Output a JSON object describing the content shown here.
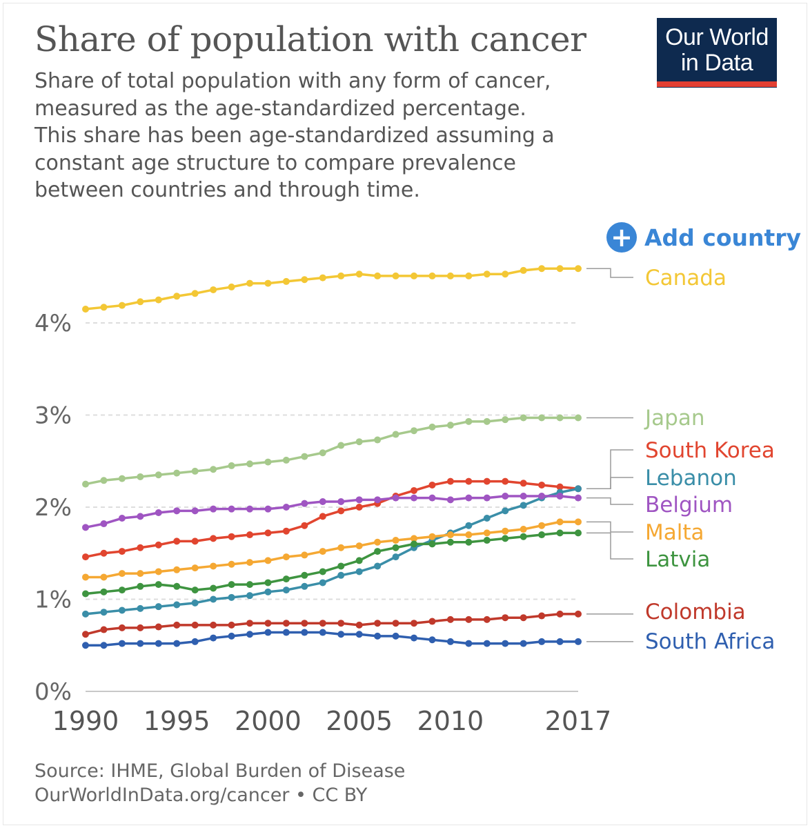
{
  "header": {
    "title": "Share of population with cancer",
    "subtitle_lines": [
      "Share of total population with any form of cancer,",
      "measured as the age-standardized percentage.",
      "This share has been age-standardized assuming a",
      "constant age structure to compare prevalence",
      "between countries and through time."
    ],
    "logo_lines": [
      "Our World",
      "in Data"
    ],
    "logo_color": "#0e2a4f",
    "logo_accent": "#e23f32"
  },
  "controls": {
    "add_country_label": "Add country",
    "add_country_icon": "plus-circle-icon",
    "accent": "#3a86d6"
  },
  "footer": {
    "source_line": "Source: IHME, Global Burden of Disease",
    "license_line": "OurWorldInData.org/cancer • CC BY"
  },
  "chart_data": {
    "type": "line",
    "title": "Share of population with cancer",
    "x": [
      1990,
      1991,
      1992,
      1993,
      1994,
      1995,
      1996,
      1997,
      1998,
      1999,
      2000,
      2001,
      2002,
      2003,
      2004,
      2005,
      2006,
      2007,
      2008,
      2009,
      2010,
      2011,
      2012,
      2013,
      2014,
      2015,
      2016,
      2017
    ],
    "xticks": [
      {
        "value": 1990,
        "label": "1990"
      },
      {
        "value": 1995,
        "label": "1995"
      },
      {
        "value": 2000,
        "label": "2000"
      },
      {
        "value": 2005,
        "label": "2005"
      },
      {
        "value": 2010,
        "label": "2010"
      },
      {
        "value": 2017,
        "label": "2017"
      }
    ],
    "yticks": [
      {
        "value": 0,
        "label": "0%"
      },
      {
        "value": 1,
        "label": "1%"
      },
      {
        "value": 2,
        "label": "2%"
      },
      {
        "value": 3,
        "label": "3%"
      },
      {
        "value": 4,
        "label": "4%"
      }
    ],
    "xlim": [
      1990,
      2017
    ],
    "ylim": [
      0,
      4.6
    ],
    "grid": "horizontal dashed",
    "legend": "right, labels at line ends",
    "series": [
      {
        "name": "Canada",
        "color": "#f3c735",
        "values": [
          4.15,
          4.17,
          4.19,
          4.23,
          4.25,
          4.29,
          4.32,
          4.36,
          4.39,
          4.43,
          4.43,
          4.45,
          4.47,
          4.49,
          4.51,
          4.53,
          4.51,
          4.51,
          4.51,
          4.51,
          4.51,
          4.51,
          4.53,
          4.53,
          4.57,
          4.59,
          4.59,
          4.59
        ]
      },
      {
        "name": "Japan",
        "color": "#a6c98c",
        "values": [
          2.25,
          2.29,
          2.31,
          2.33,
          2.35,
          2.37,
          2.39,
          2.41,
          2.45,
          2.47,
          2.49,
          2.51,
          2.55,
          2.59,
          2.67,
          2.71,
          2.73,
          2.79,
          2.83,
          2.87,
          2.89,
          2.93,
          2.93,
          2.95,
          2.97,
          2.97,
          2.97,
          2.97
        ]
      },
      {
        "name": "South Korea",
        "color": "#e1452f",
        "values": [
          1.46,
          1.5,
          1.52,
          1.56,
          1.59,
          1.63,
          1.63,
          1.66,
          1.68,
          1.7,
          1.72,
          1.74,
          1.8,
          1.9,
          1.96,
          2.0,
          2.04,
          2.12,
          2.18,
          2.24,
          2.28,
          2.28,
          2.28,
          2.28,
          2.26,
          2.24,
          2.22,
          2.2
        ]
      },
      {
        "name": "Lebanon",
        "color": "#3a8ea8",
        "values": [
          0.84,
          0.86,
          0.88,
          0.9,
          0.92,
          0.94,
          0.96,
          1.0,
          1.02,
          1.04,
          1.08,
          1.1,
          1.14,
          1.18,
          1.26,
          1.3,
          1.36,
          1.46,
          1.56,
          1.64,
          1.72,
          1.8,
          1.88,
          1.96,
          2.02,
          2.1,
          2.16,
          2.2
        ]
      },
      {
        "name": "Belgium",
        "color": "#9f55c2",
        "values": [
          1.78,
          1.82,
          1.88,
          1.9,
          1.94,
          1.96,
          1.96,
          1.98,
          1.98,
          1.98,
          1.98,
          2.0,
          2.04,
          2.06,
          2.06,
          2.08,
          2.08,
          2.1,
          2.1,
          2.1,
          2.08,
          2.1,
          2.1,
          2.12,
          2.12,
          2.12,
          2.12,
          2.1
        ]
      },
      {
        "name": "Malta",
        "color": "#f5a833",
        "values": [
          1.24,
          1.24,
          1.28,
          1.28,
          1.3,
          1.32,
          1.34,
          1.36,
          1.38,
          1.4,
          1.42,
          1.46,
          1.48,
          1.52,
          1.56,
          1.58,
          1.62,
          1.64,
          1.66,
          1.68,
          1.7,
          1.7,
          1.72,
          1.74,
          1.76,
          1.8,
          1.84,
          1.84
        ]
      },
      {
        "name": "Latvia",
        "color": "#3e9440",
        "values": [
          1.06,
          1.08,
          1.1,
          1.14,
          1.16,
          1.14,
          1.1,
          1.12,
          1.16,
          1.16,
          1.18,
          1.22,
          1.26,
          1.3,
          1.36,
          1.42,
          1.52,
          1.56,
          1.6,
          1.6,
          1.62,
          1.62,
          1.64,
          1.66,
          1.68,
          1.7,
          1.72,
          1.72
        ]
      },
      {
        "name": "Colombia",
        "color": "#c0392b",
        "values": [
          0.62,
          0.67,
          0.69,
          0.69,
          0.7,
          0.72,
          0.72,
          0.72,
          0.72,
          0.74,
          0.74,
          0.74,
          0.74,
          0.74,
          0.74,
          0.72,
          0.74,
          0.74,
          0.74,
          0.76,
          0.78,
          0.78,
          0.78,
          0.8,
          0.8,
          0.82,
          0.84,
          0.84
        ]
      },
      {
        "name": "South Africa",
        "color": "#2f5faf",
        "values": [
          0.5,
          0.5,
          0.52,
          0.52,
          0.52,
          0.52,
          0.54,
          0.58,
          0.6,
          0.62,
          0.64,
          0.64,
          0.64,
          0.64,
          0.62,
          0.62,
          0.6,
          0.6,
          0.58,
          0.56,
          0.54,
          0.52,
          0.52,
          0.52,
          0.52,
          0.54,
          0.54,
          0.54
        ]
      }
    ]
  }
}
